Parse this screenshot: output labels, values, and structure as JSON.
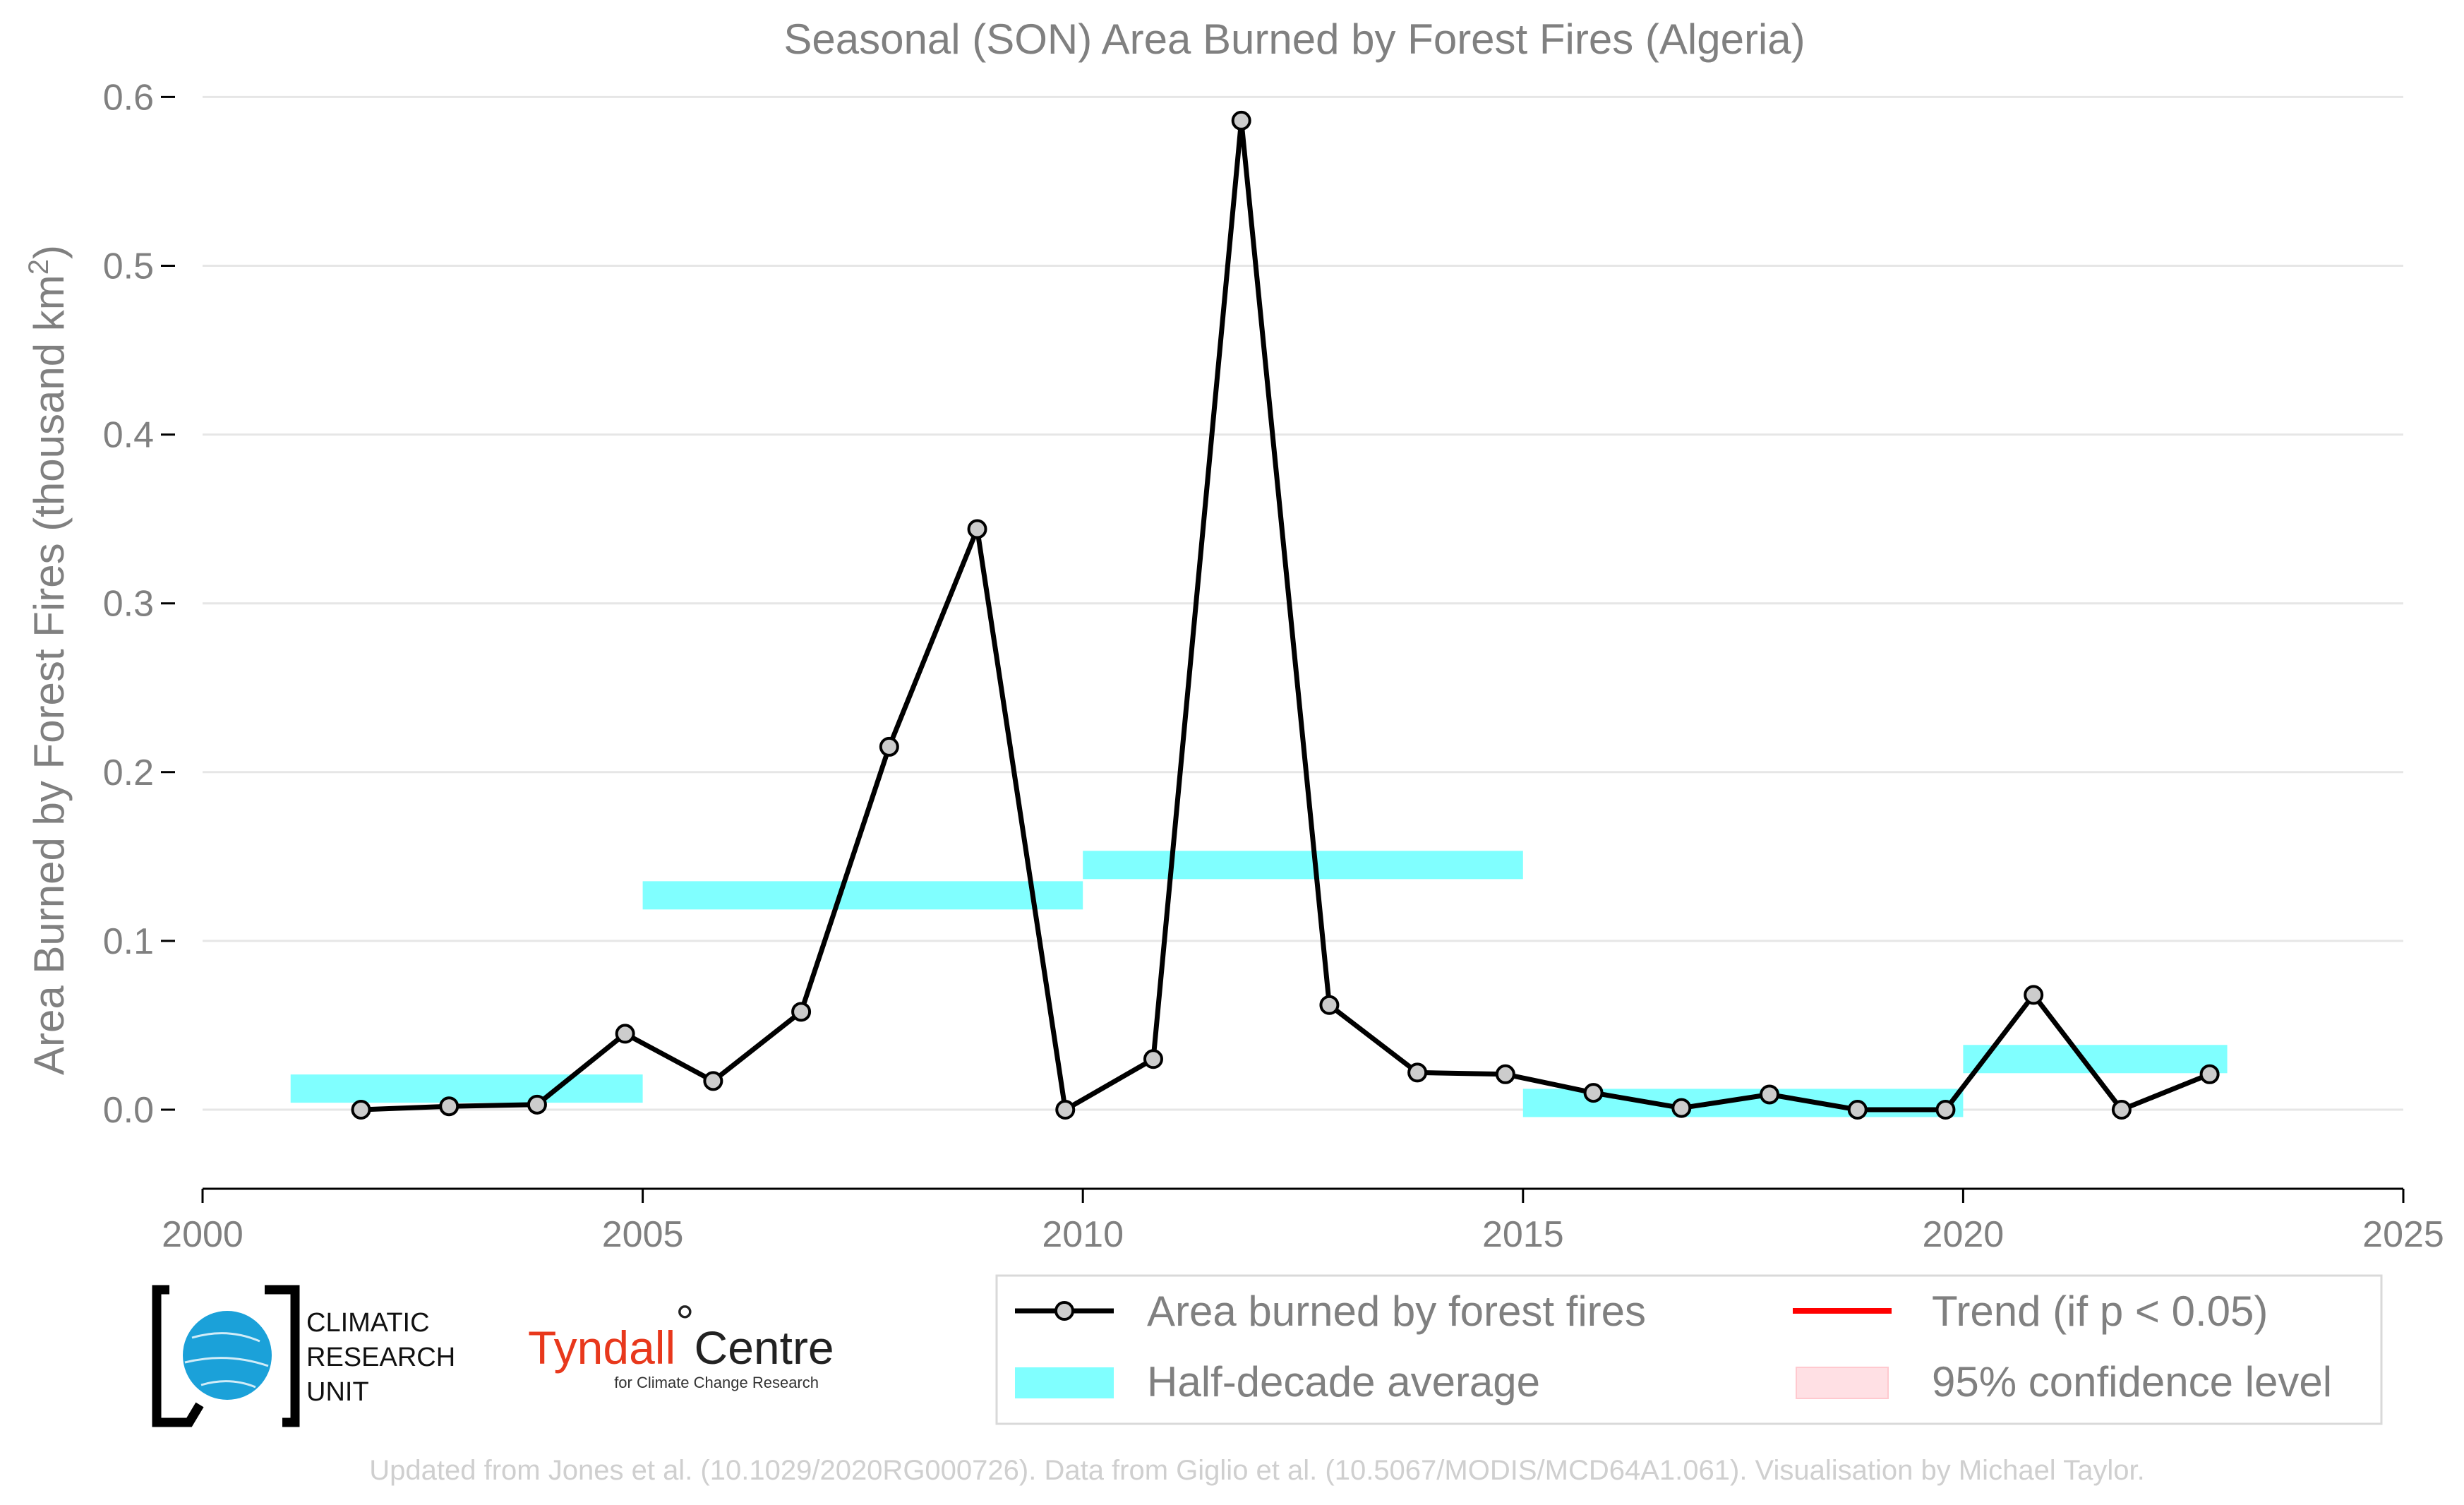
{
  "chart_data": {
    "type": "line",
    "title": "Seasonal (SON) Area Burned by Forest Fires (Algeria)",
    "xlabel": "",
    "ylabel": "Area Burned by Forest Fires (thousand km",
    "ylabel_superscript": "2",
    "ylabel_suffix": ")",
    "xlim": [
      2000,
      2025
    ],
    "ylim": [
      -0.05,
      0.6
    ],
    "x_ticks": [
      2000,
      2005,
      2010,
      2015,
      2020,
      2025
    ],
    "y_ticks": [
      0.0,
      0.1,
      0.2,
      0.3,
      0.4,
      0.5,
      0.6
    ],
    "y_tick_labels": [
      "0.0",
      "0.1",
      "0.2",
      "0.3",
      "0.4",
      "0.5",
      "0.6"
    ],
    "grid": "horizontal",
    "legend_position": "bottom-right",
    "series": [
      {
        "name": "Area burned by forest fires",
        "kind": "line-markers",
        "color": "#000000",
        "marker_fill": "#cccccc",
        "x": [
          2001.8,
          2002.8,
          2003.8,
          2004.8,
          2005.8,
          2006.8,
          2007.8,
          2008.8,
          2009.8,
          2010.8,
          2011.8,
          2012.8,
          2013.8,
          2014.8,
          2015.8,
          2016.8,
          2017.8,
          2018.8,
          2019.8,
          2020.8,
          2021.8,
          2022.8
        ],
        "y": [
          0.0,
          0.002,
          0.003,
          0.045,
          0.017,
          0.058,
          0.215,
          0.344,
          0.0,
          0.03,
          0.586,
          0.062,
          0.022,
          0.021,
          0.01,
          0.001,
          0.009,
          0.0,
          0.0,
          0.068,
          0.0,
          0.021
        ]
      },
      {
        "name": "Half-decade average",
        "kind": "bands",
        "color": "#80ffff",
        "segments": [
          {
            "x0": 2001,
            "x1": 2005,
            "y": 0.0125
          },
          {
            "x0": 2005,
            "x1": 2010,
            "y": 0.127
          },
          {
            "x0": 2010,
            "x1": 2015,
            "y": 0.145
          },
          {
            "x0": 2015,
            "x1": 2020,
            "y": 0.004
          },
          {
            "x0": 2020,
            "x1": 2023,
            "y": 0.03
          }
        ]
      }
    ],
    "legend": [
      {
        "label": "Area burned by forest fires",
        "swatch": "line-marker",
        "color": "#000000"
      },
      {
        "label": "Trend (if p < 0.05)",
        "swatch": "line",
        "color": "#ff0000"
      },
      {
        "label": "Half-decade average",
        "swatch": "band",
        "color": "#80ffff"
      },
      {
        "label": "95% confidence level",
        "swatch": "band",
        "color": "#ffe0e4"
      }
    ]
  },
  "logos": {
    "cru": [
      "CLIMATIC",
      "RESEARCH",
      "UNIT"
    ],
    "tyndall_main": "Tyndall",
    "tyndall_degree": "°",
    "tyndall_centre": "Centre",
    "tyndall_sub": "for Climate Change Research"
  },
  "footer": "Updated from Jones et al. (10.1029/2020RG000726). Data from Giglio et al. (10.5067/MODIS/MCD64A1.061). Visualisation by Michael Taylor."
}
